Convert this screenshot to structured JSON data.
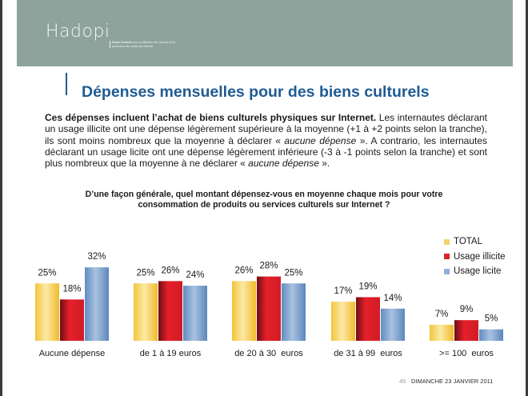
{
  "header": {
    "logo": "Hadopi",
    "tagline_bold": "Haute Autorité",
    "tagline_rest": " pour la diffusion des œuvres et la protection des droits sur internet",
    "background_color": "#8fa39d"
  },
  "title": "Dépenses mensuelles pour des biens culturels",
  "intro": {
    "bold": "Ces dépenses incluent l’achat de biens culturels physiques sur Internet.",
    "part1": " Les internautes déclarant un usage illicite ont une dépense légèrement supérieure à la moyenne (+1 à +2 points selon la tranche), ils sont moins nombreux que la moyenne à déclarer « ",
    "italic1": "aucune dépense",
    "part2": " ». A contrario, les internautes déclarant un usage licite ont une dépense légèrement inférieure (-3 à -1 points selon la tranche) et sont plus nombreux que la moyenne à ne déclarer « ",
    "italic2": "aucune dépense",
    "part3": " »."
  },
  "question": "D’une façon générale, quel montant dépensez-vous en moyenne chaque mois pour votre consommation de produits ou services culturels sur Internet ?",
  "chart_data": {
    "type": "bar",
    "title": "D’une façon générale, quel montant dépensez-vous en moyenne chaque mois pour votre consommation de produits ou services culturels sur Internet ?",
    "categories": [
      "Aucune dépense",
      "de 1 à 19 euros",
      "de 20 à 30  euros",
      "de 31 à 99  euros",
      ">= 100  euros"
    ],
    "series": [
      {
        "name": "TOTAL",
        "color": "#f5c842",
        "values": [
          25,
          25,
          26,
          17,
          7
        ]
      },
      {
        "name": "Usage illicite",
        "color": "#d8222c",
        "values": [
          18,
          26,
          28,
          19,
          9
        ]
      },
      {
        "name": "Usage licite",
        "color": "#6e98c9",
        "values": [
          32,
          24,
          25,
          14,
          5
        ]
      }
    ],
    "value_format": "{v}%",
    "xlabel": "",
    "ylabel": "",
    "ylim": [
      0,
      32
    ],
    "grid": false,
    "legend": "top-right"
  },
  "footer": {
    "page_number": "45",
    "date": "DIMANCHE 23 JANVIER 2011"
  }
}
